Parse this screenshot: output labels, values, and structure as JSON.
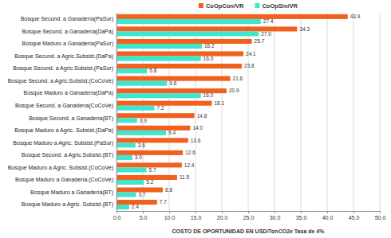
{
  "chart_data": {
    "type": "bar",
    "orientation": "horizontal",
    "x_label": "COSTO DE OPORTUNIDAD EN USD/TonCO2e Tasa de 4%",
    "categories": [
      "Bosque Secund. a Ganadería(PaSur)",
      "Bosque Secund. a Ganadería(DaPa)",
      "Bosque Maduro a Ganadería(PaSur)",
      "Bosque Secund. a Agric.Subsist.(DaPa)",
      "Bosque Secund. a Agric.Subsist.(PaSur)",
      "Bosque Secund. a Agric.Subsist.(CoCoVe)",
      "Bosque Maduro a Ganadería(DaPa)",
      "Bosque Secund. a Ganadería(CoCoVe)",
      "Bosque Secund. a Ganadería(BT)",
      "Bosque Maduro a Agric. Subsist.(DaPa)",
      "Bosque Maduro a Agric. Subsist.(PaSur)",
      "Bosque Secund. a Agric.Subsist.(BT)",
      "Bosque Maduro a Agric. Subsist.(CoCoVe)",
      "Bosque Maduro a Ganadería.(CoCoVe)",
      "Bosque Maduro a Ganadería(BT)",
      "Bosque Maduro a Agric. Subsist.(BT)"
    ],
    "series": [
      {
        "name": "CoOpCon/VR",
        "color": "#f2601e",
        "values": [
          43.9,
          34.3,
          25.7,
          24.1,
          23.8,
          21.6,
          20.9,
          18.1,
          14.8,
          14.0,
          13.6,
          12.6,
          12.4,
          11.5,
          8.8,
          7.7
        ],
        "value_labels": [
          "43.9",
          "34.3",
          "25.7",
          "24.1",
          "23.8",
          "21.6",
          "20.9",
          "18.1",
          "14.8",
          "14.0",
          "13.6",
          "12.6",
          "12.4",
          "11.5",
          "8.8",
          "7.7"
        ]
      },
      {
        "name": "CoOpSin/VR",
        "color": "#3ee6cf",
        "values": [
          27.4,
          27.0,
          16.2,
          16.0,
          5.8,
          9.6,
          16.0,
          7.2,
          3.9,
          9.4,
          3.6,
          3.0,
          5.7,
          5.2,
          3.7,
          2.4
        ],
        "value_labels": [
          "27.4",
          "27.0",
          "16.2",
          "16.0",
          "5.8",
          "9.6",
          "16.0",
          "7.2",
          "3.9",
          "9.4",
          "3.6",
          "3.0",
          "5.7",
          "5.2",
          "3.7",
          "2.4"
        ]
      }
    ],
    "xlim": [
      0,
      50
    ],
    "xticks": [
      {
        "value": 0,
        "label": "0.0"
      },
      {
        "value": 5,
        "label": "5.0"
      },
      {
        "value": 10,
        "label": "10.0"
      },
      {
        "value": 15,
        "label": "15.0"
      },
      {
        "value": 20,
        "label": "20.0"
      },
      {
        "value": 25,
        "label": "25.0"
      },
      {
        "value": 30,
        "label": "30.0"
      },
      {
        "value": 35,
        "label": "35.0"
      },
      {
        "value": 40,
        "label": "40.0"
      },
      {
        "value": 45,
        "label": "45.0"
      },
      {
        "value": 50,
        "label": "50.0"
      }
    ],
    "grid": true,
    "legend": "top",
    "data_labels": true
  }
}
